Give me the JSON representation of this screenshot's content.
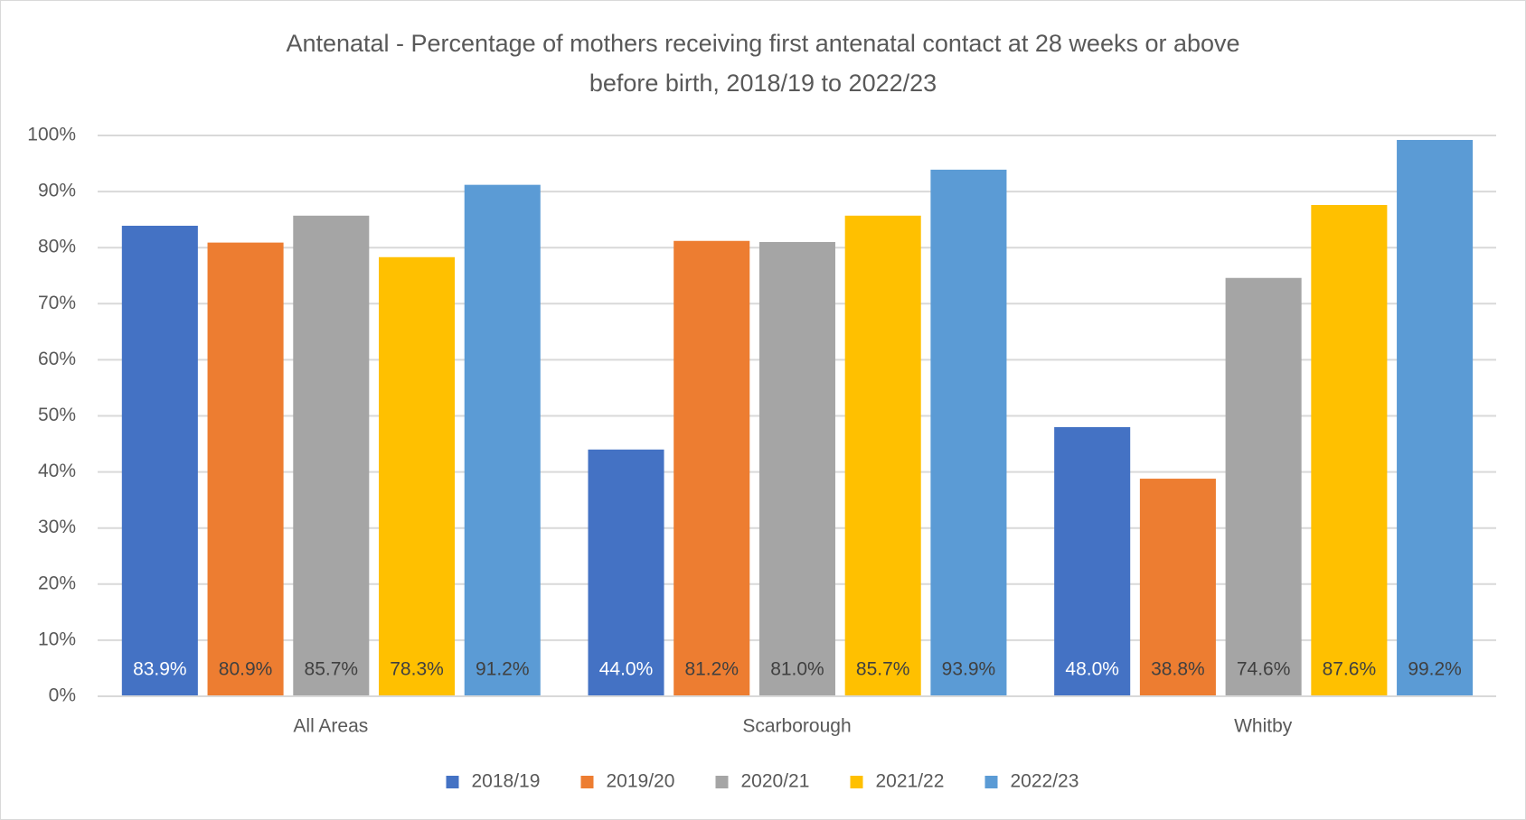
{
  "chart_data": {
    "type": "bar",
    "title": "Antenatal - Percentage of mothers receiving first antenatal contact at 28 weeks or above\nbefore birth, 2018/19 to 2022/23",
    "categories": [
      "All Areas",
      "Scarborough",
      "Whitby"
    ],
    "series": [
      {
        "name": "2018/19",
        "color": "#4472c4",
        "values": [
          83.9,
          44.0,
          48.0
        ],
        "value_labels": [
          "83.9%",
          "44.0%",
          "48.0%"
        ]
      },
      {
        "name": "2019/20",
        "color": "#ed7d31",
        "values": [
          80.9,
          81.2,
          38.8
        ],
        "value_labels": [
          "80.9%",
          "81.2%",
          "38.8%"
        ]
      },
      {
        "name": "2020/21",
        "color": "#a5a5a5",
        "values": [
          85.7,
          81.0,
          74.6
        ],
        "value_labels": [
          "85.7%",
          "81.0%",
          "74.6%"
        ]
      },
      {
        "name": "2021/22",
        "color": "#ffc000",
        "values": [
          78.3,
          85.7,
          87.6
        ],
        "value_labels": [
          "78.3%",
          "85.7%",
          "87.6%"
        ]
      },
      {
        "name": "2022/23",
        "color": "#5b9bd5",
        "values": [
          91.2,
          93.9,
          99.2
        ],
        "value_labels": [
          "91.2%",
          "93.9%",
          "99.2%"
        ]
      }
    ],
    "ylim": [
      0,
      100
    ],
    "yticks": [
      {
        "value": 0,
        "label": "0%"
      },
      {
        "value": 10,
        "label": "10%"
      },
      {
        "value": 20,
        "label": "20%"
      },
      {
        "value": 30,
        "label": "30%"
      },
      {
        "value": 40,
        "label": "40%"
      },
      {
        "value": 50,
        "label": "50%"
      },
      {
        "value": 60,
        "label": "60%"
      },
      {
        "value": 70,
        "label": "70%"
      },
      {
        "value": 80,
        "label": "80%"
      },
      {
        "value": 90,
        "label": "90%"
      },
      {
        "value": 100,
        "label": "100%"
      }
    ],
    "grid": true,
    "legend": "bottom"
  }
}
